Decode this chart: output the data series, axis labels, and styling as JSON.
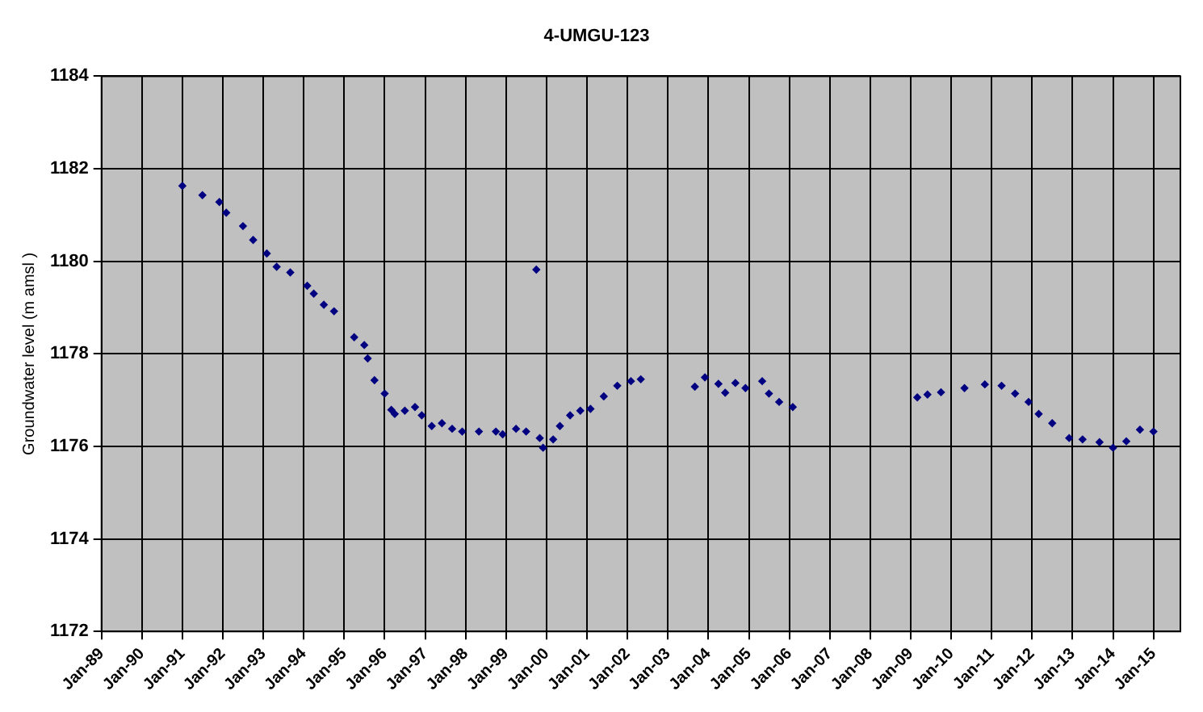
{
  "chart_data": {
    "type": "scatter",
    "title": "4-UMGU-123",
    "ylabel": "Groundwater level (m amsl )",
    "x": [
      "1991-01",
      "1991-07",
      "1991-12",
      "1992-02",
      "1992-07",
      "1992-10",
      "1993-02",
      "1993-05",
      "1993-09",
      "1994-02",
      "1994-04",
      "1994-07",
      "1994-10",
      "1995-04",
      "1995-07",
      "1995-08",
      "1995-10",
      "1996-01",
      "1996-03",
      "1996-04",
      "1996-07",
      "1996-10",
      "1996-12",
      "1997-03",
      "1997-06",
      "1997-09",
      "1997-12",
      "1998-05",
      "1998-10",
      "1998-12",
      "1999-04",
      "1999-07",
      "1999-10",
      "1999-11",
      "1999-12",
      "2000-03",
      "2000-05",
      "2000-08",
      "2000-11",
      "2001-02",
      "2001-06",
      "2001-10",
      "2002-02",
      "2002-05",
      "2003-09",
      "2003-12",
      "2004-04",
      "2004-06",
      "2004-09",
      "2004-12",
      "2005-05",
      "2005-07",
      "2005-10",
      "2006-02",
      "2009-03",
      "2009-06",
      "2009-10",
      "2010-05",
      "2010-11",
      "2011-04",
      "2011-08",
      "2011-12",
      "2012-03",
      "2012-07",
      "2012-12",
      "2013-04",
      "2013-09",
      "2014-01",
      "2014-05",
      "2014-09",
      "2015-01"
    ],
    "series": [
      {
        "color": "#000080",
        "values": [
          1181.63,
          1181.43,
          1181.28,
          1181.05,
          1180.76,
          1180.46,
          1180.17,
          1179.88,
          1179.76,
          1179.47,
          1179.3,
          1179.06,
          1178.92,
          1178.36,
          1178.19,
          1177.9,
          1177.43,
          1177.14,
          1176.79,
          1176.7,
          1176.77,
          1176.85,
          1176.67,
          1176.44,
          1176.5,
          1176.38,
          1176.32,
          1176.32,
          1176.32,
          1176.26,
          1176.38,
          1176.32,
          1179.82,
          1176.18,
          1175.97,
          1176.15,
          1176.44,
          1176.67,
          1176.77,
          1176.81,
          1177.08,
          1177.31,
          1177.41,
          1177.45,
          1177.29,
          1177.49,
          1177.35,
          1177.16,
          1177.37,
          1177.26,
          1177.41,
          1177.14,
          1176.96,
          1176.85,
          1177.06,
          1177.12,
          1177.17,
          1177.26,
          1177.34,
          1177.31,
          1177.14,
          1176.96,
          1176.7,
          1176.5,
          1176.18,
          1176.15,
          1176.09,
          1175.97,
          1176.11,
          1176.36,
          1176.32
        ]
      }
    ],
    "xlim": [
      "1989-01",
      "2015-09"
    ],
    "xticks": [
      {
        "value": "1989-01",
        "label": "Jan-89"
      },
      {
        "value": "1990-01",
        "label": "Jan-90"
      },
      {
        "value": "1991-01",
        "label": "Jan-91"
      },
      {
        "value": "1992-01",
        "label": "Jan-92"
      },
      {
        "value": "1993-01",
        "label": "Jan-93"
      },
      {
        "value": "1994-01",
        "label": "Jan-94"
      },
      {
        "value": "1995-01",
        "label": "Jan-95"
      },
      {
        "value": "1996-01",
        "label": "Jan-96"
      },
      {
        "value": "1997-01",
        "label": "Jan-97"
      },
      {
        "value": "1998-01",
        "label": "Jan-98"
      },
      {
        "value": "1999-01",
        "label": "Jan-99"
      },
      {
        "value": "2000-01",
        "label": "Jan-00"
      },
      {
        "value": "2001-01",
        "label": "Jan-01"
      },
      {
        "value": "2002-01",
        "label": "Jan-02"
      },
      {
        "value": "2003-01",
        "label": "Jan-03"
      },
      {
        "value": "2004-01",
        "label": "Jan-04"
      },
      {
        "value": "2005-01",
        "label": "Jan-05"
      },
      {
        "value": "2006-01",
        "label": "Jan-06"
      },
      {
        "value": "2007-01",
        "label": "Jan-07"
      },
      {
        "value": "2008-01",
        "label": "Jan-08"
      },
      {
        "value": "2009-01",
        "label": "Jan-09"
      },
      {
        "value": "2010-01",
        "label": "Jan-10"
      },
      {
        "value": "2011-01",
        "label": "Jan-11"
      },
      {
        "value": "2012-01",
        "label": "Jan-12"
      },
      {
        "value": "2013-01",
        "label": "Jan-13"
      },
      {
        "value": "2014-01",
        "label": "Jan-14"
      },
      {
        "value": "2015-01",
        "label": "Jan-15"
      }
    ],
    "ylim": [
      1172,
      1184
    ],
    "yticks": [
      1172,
      1174,
      1176,
      1178,
      1180,
      1182,
      1184
    ],
    "grid": true,
    "legend": false,
    "marker": "diamond"
  }
}
